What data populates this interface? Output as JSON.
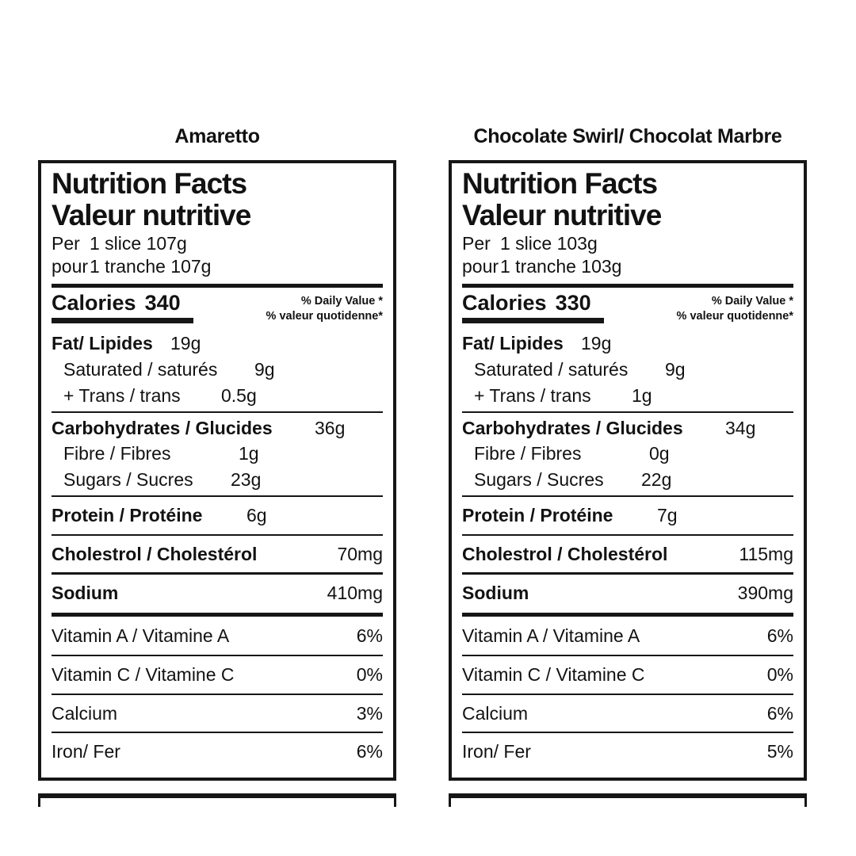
{
  "page": {
    "background": "#ffffff",
    "ink_color": "#161616"
  },
  "labels": [
    {
      "title": "Amaretto",
      "heading_en": "Nutrition Facts",
      "heading_fr": "Valeur nutritive",
      "serving": {
        "en_label": "Per",
        "en_value": "1 slice 107g",
        "fr_label": "pour",
        "fr_value": "1 tranche 107g"
      },
      "calories": {
        "label": "Calories",
        "value": "340"
      },
      "daily_value_note": {
        "line1": "% Daily Value *",
        "line2": "% valeur quotidenne*"
      },
      "rows": [
        {
          "label": "Fat/ Lipides",
          "value": "19g",
          "bold": true,
          "indent": false,
          "align": "tab",
          "tab": 150,
          "spacing": "sub",
          "divider_after": "none"
        },
        {
          "label": "Saturated / saturés",
          "value": "9g",
          "bold": false,
          "indent": true,
          "align": "tab",
          "tab": 256,
          "spacing": "sub",
          "divider_after": "none"
        },
        {
          "label": "+ Trans / trans",
          "value": "0.5g",
          "bold": false,
          "indent": true,
          "align": "tab",
          "tab": 214,
          "spacing": "sub",
          "divider_after": "thin"
        },
        {
          "label": "Carbohydrates / Glucides",
          "value": "36g",
          "bold": true,
          "indent": false,
          "align": "tab",
          "tab": 332,
          "spacing": "sub",
          "divider_after": "none"
        },
        {
          "label": "Fibre / Fibres",
          "value": "1g",
          "bold": false,
          "indent": true,
          "align": "tab",
          "tab": 236,
          "spacing": "sub",
          "divider_after": "none"
        },
        {
          "label": "Sugars / Sucres",
          "value": "23g",
          "bold": false,
          "indent": true,
          "align": "tab",
          "tab": 226,
          "spacing": "sub",
          "divider_after": "thin"
        },
        {
          "label": "Protein / Protéine",
          "value": "6g",
          "bold": true,
          "indent": false,
          "align": "tab",
          "tab": 246,
          "spacing": "tall",
          "divider_after": "thin"
        },
        {
          "label": "Cholestrol / Cholestérol",
          "value": "70mg",
          "bold": true,
          "indent": false,
          "align": "right",
          "tab": 0,
          "spacing": "tall",
          "divider_after": "medium"
        },
        {
          "label": "Sodium",
          "value": "410mg",
          "bold": true,
          "indent": false,
          "align": "right",
          "tab": 0,
          "spacing": "tall",
          "divider_after": "thick"
        },
        {
          "label": "Vitamin A / Vitamine A",
          "value": "6%",
          "bold": false,
          "indent": false,
          "align": "right",
          "tab": 0,
          "spacing": "tall",
          "divider_after": "thin"
        },
        {
          "label": "Vitamin C / Vitamine C",
          "value": "0%",
          "bold": false,
          "indent": false,
          "align": "right",
          "tab": 0,
          "spacing": "tall",
          "divider_after": "thin"
        },
        {
          "label": "Calcium",
          "value": "3%",
          "bold": false,
          "indent": false,
          "align": "right",
          "tab": 0,
          "spacing": "tall",
          "divider_after": "thin"
        },
        {
          "label": "Iron/ Fer",
          "value": "6%",
          "bold": false,
          "indent": false,
          "align": "right",
          "tab": 0,
          "spacing": "tall",
          "divider_after": "none"
        }
      ]
    },
    {
      "title": "Chocolate Swirl/ Chocolat Marbre",
      "heading_en": "Nutrition Facts",
      "heading_fr": "Valeur nutritive",
      "serving": {
        "en_label": "Per",
        "en_value": "1 slice 103g",
        "fr_label": "pour",
        "fr_value": "1 tranche 103g"
      },
      "calories": {
        "label": "Calories",
        "value": "330"
      },
      "daily_value_note": {
        "line1": "% Daily Value *",
        "line2": "% valeur quotidenne*"
      },
      "rows": [
        {
          "label": "Fat/ Lipides",
          "value": "19g",
          "bold": true,
          "indent": false,
          "align": "tab",
          "tab": 150,
          "spacing": "sub",
          "divider_after": "none"
        },
        {
          "label": "Saturated / saturés",
          "value": "9g",
          "bold": false,
          "indent": true,
          "align": "tab",
          "tab": 256,
          "spacing": "sub",
          "divider_after": "none"
        },
        {
          "label": "+ Trans / trans",
          "value": "1g",
          "bold": false,
          "indent": true,
          "align": "tab",
          "tab": 214,
          "spacing": "sub",
          "divider_after": "thin"
        },
        {
          "label": "Carbohydrates / Glucides",
          "value": "34g",
          "bold": true,
          "indent": false,
          "align": "tab",
          "tab": 332,
          "spacing": "sub",
          "divider_after": "none"
        },
        {
          "label": "Fibre / Fibres",
          "value": "0g",
          "bold": false,
          "indent": true,
          "align": "tab",
          "tab": 236,
          "spacing": "sub",
          "divider_after": "none"
        },
        {
          "label": "Sugars / Sucres",
          "value": "22g",
          "bold": false,
          "indent": true,
          "align": "tab",
          "tab": 226,
          "spacing": "sub",
          "divider_after": "thin"
        },
        {
          "label": "Protein / Protéine",
          "value": "7g",
          "bold": true,
          "indent": false,
          "align": "tab",
          "tab": 246,
          "spacing": "tall",
          "divider_after": "thin"
        },
        {
          "label": "Cholestrol / Cholestérol",
          "value": "115mg",
          "bold": true,
          "indent": false,
          "align": "right",
          "tab": 0,
          "spacing": "tall",
          "divider_after": "medium"
        },
        {
          "label": "Sodium",
          "value": "390mg",
          "bold": true,
          "indent": false,
          "align": "right",
          "tab": 0,
          "spacing": "tall",
          "divider_after": "thick"
        },
        {
          "label": "Vitamin A / Vitamine A",
          "value": "6%",
          "bold": false,
          "indent": false,
          "align": "right",
          "tab": 0,
          "spacing": "tall",
          "divider_after": "thin"
        },
        {
          "label": "Vitamin C / Vitamine C",
          "value": "0%",
          "bold": false,
          "indent": false,
          "align": "right",
          "tab": 0,
          "spacing": "tall",
          "divider_after": "thin"
        },
        {
          "label": "Calcium",
          "value": "6%",
          "bold": false,
          "indent": false,
          "align": "right",
          "tab": 0,
          "spacing": "tall",
          "divider_after": "thin"
        },
        {
          "label": "Iron/ Fer",
          "value": "5%",
          "bold": false,
          "indent": false,
          "align": "right",
          "tab": 0,
          "spacing": "tall",
          "divider_after": "none"
        }
      ]
    }
  ]
}
